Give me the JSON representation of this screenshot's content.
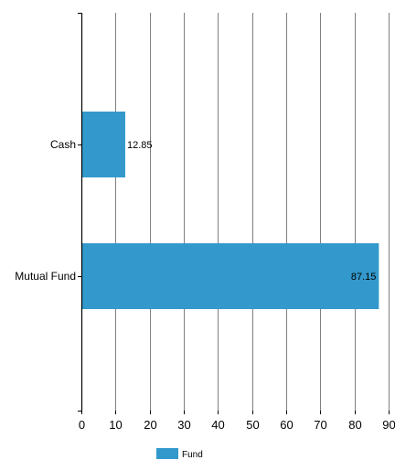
{
  "chart_data": {
    "type": "bar",
    "orientation": "horizontal",
    "categories": [
      "Cash",
      "Mutual Fund"
    ],
    "series": [
      {
        "name": "Fund",
        "values": [
          12.85,
          87.15
        ],
        "color": "#3399cc"
      }
    ],
    "data_labels": [
      "12.85",
      "87.15"
    ],
    "x_ticks": [
      "0",
      "10",
      "20",
      "30",
      "40",
      "50",
      "60",
      "70",
      "80",
      "90"
    ],
    "xlim": [
      0,
      90
    ],
    "grid": true,
    "legend_position": "bottom-center"
  }
}
